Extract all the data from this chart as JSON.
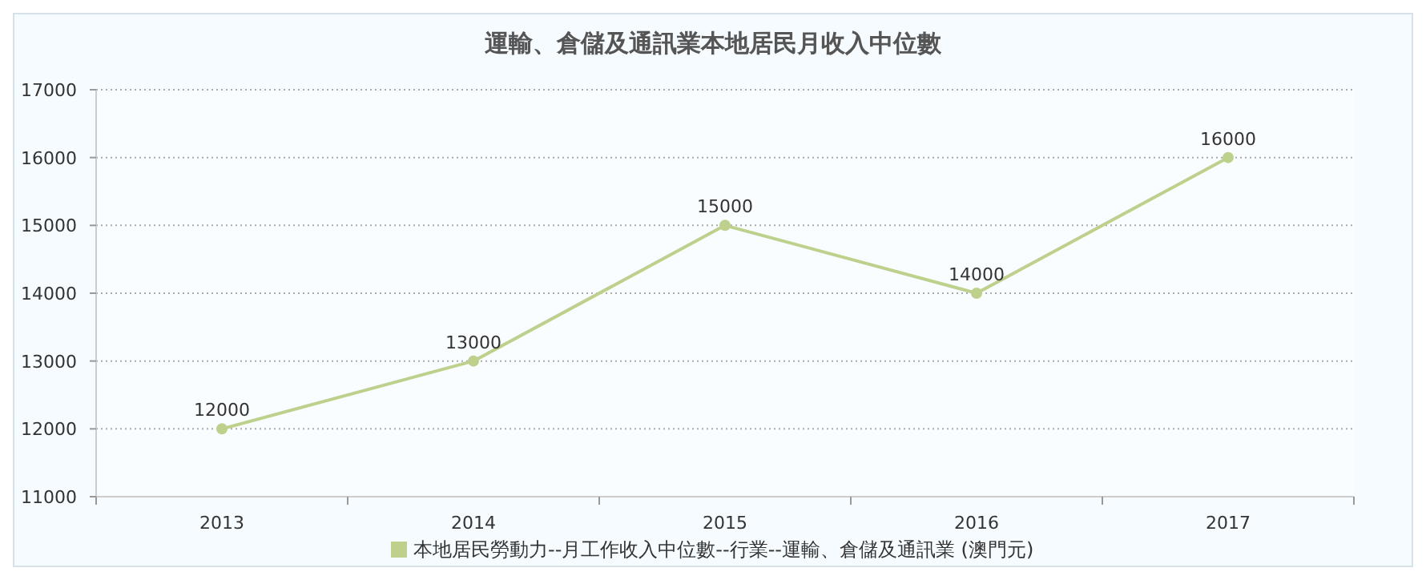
{
  "chart_data": {
    "type": "line",
    "title": "運輸、倉儲及通訊業本地居民月收入中位數",
    "categories": [
      "2013",
      "2014",
      "2015",
      "2016",
      "2017"
    ],
    "series": [
      {
        "name": "本地居民勞動力--月工作收入中位數--行業--運輸、倉儲及通訊業 (澳門元)",
        "color": "#bdd08c",
        "values": [
          12000,
          13000,
          15000,
          14000,
          16000
        ]
      }
    ],
    "ylim": [
      11000,
      17000
    ],
    "yticks": [
      11000,
      12000,
      13000,
      14000,
      15000,
      16000,
      17000
    ],
    "grid": "y",
    "legend": "bottom",
    "marker": "circle",
    "data_labels": true
  }
}
